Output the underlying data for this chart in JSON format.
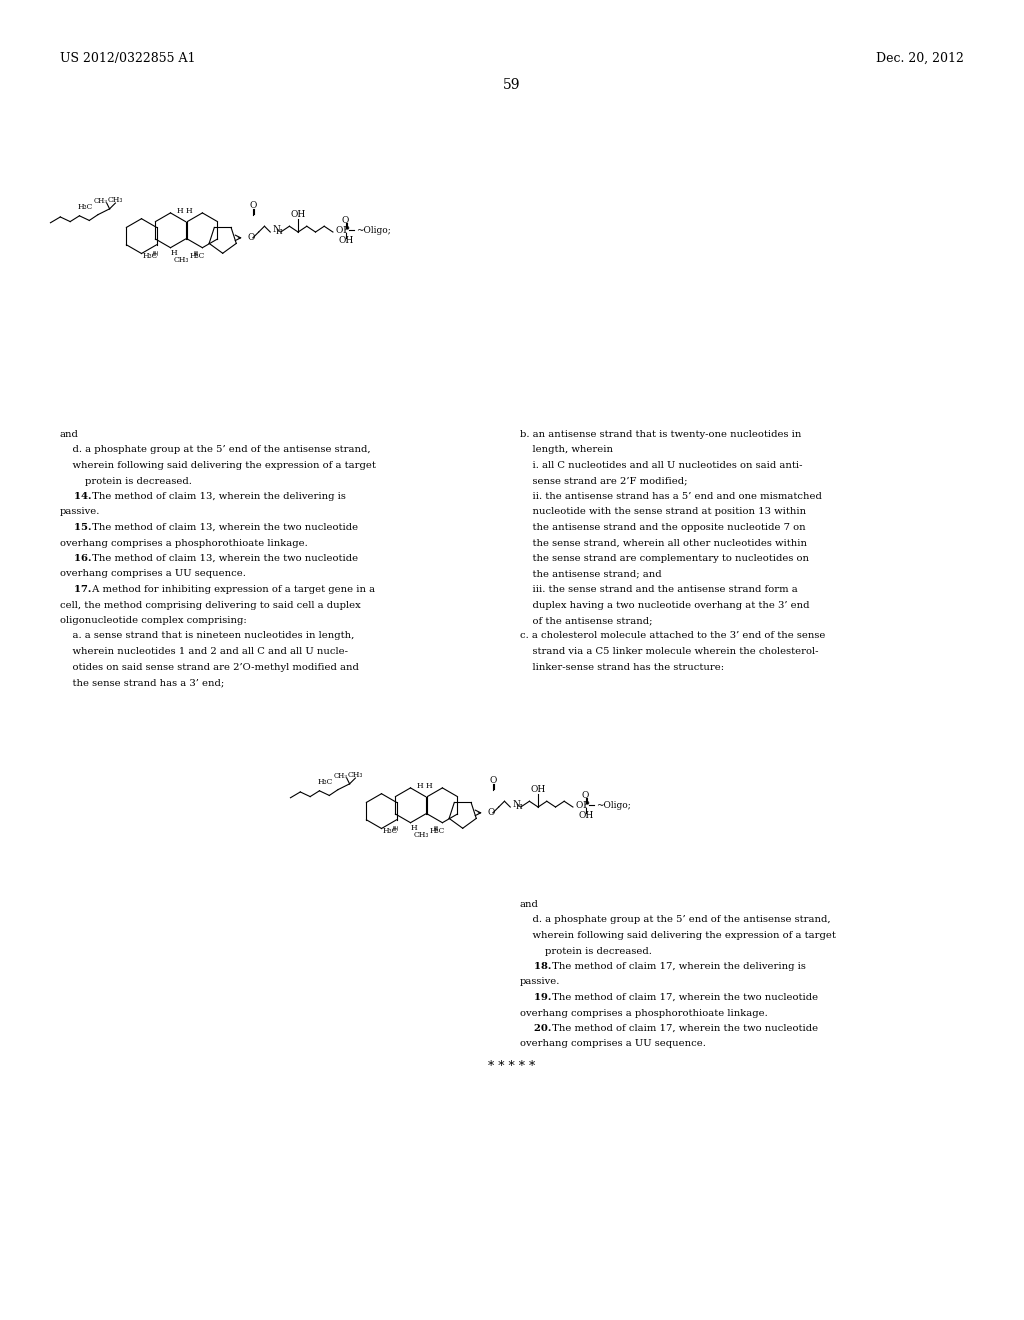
{
  "bg_color": "#ffffff",
  "header_left": "US 2012/0322855 A1",
  "header_right": "Dec. 20, 2012",
  "page_number": "59",
  "left_col_text": [
    [
      "and",
      false,
      false
    ],
    [
      "    d. a phosphate group at the 5’ end of the antisense strand,",
      false,
      false
    ],
    [
      "    wherein following said delivering the expression of a target",
      false,
      false
    ],
    [
      "        protein is decreased.",
      false,
      false
    ],
    [
      "    14. The method of claim 13, wherein the delivering is",
      true,
      false
    ],
    [
      "passive.",
      false,
      false
    ],
    [
      "    15. The method of claim 13, wherein the two nucleotide",
      true,
      false
    ],
    [
      "overhang comprises a phosphorothioate linkage.",
      false,
      false
    ],
    [
      "    16. The method of claim 13, wherein the two nucleotide",
      true,
      false
    ],
    [
      "overhang comprises a UU sequence.",
      false,
      false
    ],
    [
      "    17. A method for inhibiting expression of a target gene in a",
      true,
      false
    ],
    [
      "cell, the method comprising delivering to said cell a duplex",
      false,
      false
    ],
    [
      "oligonucleotide complex comprising:",
      false,
      false
    ],
    [
      "    a. a sense strand that is nineteen nucleotides in length,",
      false,
      false
    ],
    [
      "    wherein nucleotides 1 and 2 and all C and all U nucle-",
      false,
      false
    ],
    [
      "    otides on said sense strand are 2’O-methyl modified and",
      false,
      false
    ],
    [
      "    the sense strand has a 3’ end;",
      false,
      false
    ]
  ],
  "right_col_text": [
    [
      "b. an antisense strand that is twenty-one nucleotides in",
      false,
      false
    ],
    [
      "    length, wherein",
      false,
      false
    ],
    [
      "    i. all C nucleotides and all U nucleotides on said anti-",
      false,
      false
    ],
    [
      "    sense strand are 2’F modified;",
      false,
      false
    ],
    [
      "    ii. the antisense strand has a 5’ end and one mismatched",
      false,
      false
    ],
    [
      "    nucleotide with the sense strand at position 13 within",
      false,
      false
    ],
    [
      "    the antisense strand and the opposite nucleotide 7 on",
      false,
      false
    ],
    [
      "    the sense strand, wherein all other nucleotides within",
      false,
      false
    ],
    [
      "    the sense strand are complementary to nucleotides on",
      false,
      false
    ],
    [
      "    the antisense strand; and",
      false,
      false
    ],
    [
      "    iii. the sense strand and the antisense strand form a",
      false,
      false
    ],
    [
      "    duplex having a two nucleotide overhang at the 3’ end",
      false,
      false
    ],
    [
      "    of the antisense strand;",
      false,
      false
    ],
    [
      "c. a cholesterol molecule attached to the 3’ end of the sense",
      false,
      false
    ],
    [
      "    strand via a C5 linker molecule wherein the cholesterol-",
      false,
      false
    ],
    [
      "    linker-sense strand has the structure:",
      false,
      false
    ]
  ],
  "bottom_right_text": [
    [
      "and",
      false,
      false
    ],
    [
      "    d. a phosphate group at the 5’ end of the antisense strand,",
      false,
      false
    ],
    [
      "    wherein following said delivering the expression of a target",
      false,
      false
    ],
    [
      "        protein is decreased.",
      false,
      false
    ],
    [
      "    18. The method of claim 17, wherein the delivering is",
      true,
      false
    ],
    [
      "passive.",
      false,
      false
    ],
    [
      "    19. The method of claim 17, wherein the two nucleotide",
      true,
      false
    ],
    [
      "overhang comprises a phosphorothioate linkage.",
      false,
      false
    ],
    [
      "    20. The method of claim 17, wherein the two nucleotide",
      true,
      false
    ],
    [
      "overhang comprises a UU sequence.",
      false,
      false
    ]
  ],
  "asterisks": "* * * * *"
}
